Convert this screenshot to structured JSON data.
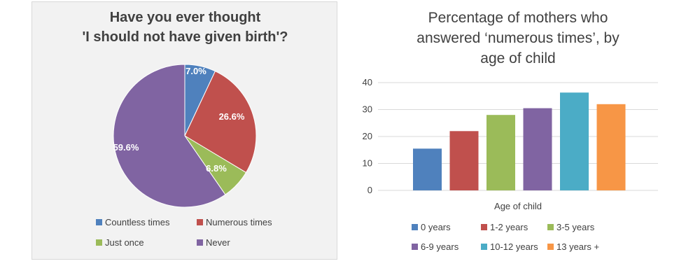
{
  "chart_data": [
    {
      "type": "pie",
      "title_line1": "Have you ever thought",
      "title_line2": "'I should not have given birth'?",
      "legend_position": "bottom",
      "slices": [
        {
          "label": "Countless times",
          "value": 7.0,
          "display": "7.0%",
          "color": "#4f81bd"
        },
        {
          "label": "Numerous times",
          "value": 26.6,
          "display": "26.6%",
          "color": "#c0504d"
        },
        {
          "label": "Just once",
          "value": 6.8,
          "display": "6.8%",
          "color": "#9bbb59"
        },
        {
          "label": "Never",
          "value": 59.6,
          "display": "59.6%",
          "color": "#8064a2"
        }
      ]
    },
    {
      "type": "bar",
      "title_line1": "Percentage of mothers who",
      "title_line2": "answered ‘numerous times’, by",
      "title_line3": "age of child",
      "xlabel": "Age of child",
      "ylim": [
        0,
        40
      ],
      "yticks": [
        0,
        10,
        20,
        30,
        40
      ],
      "grid": true,
      "legend_position": "bottom",
      "series": [
        {
          "name": "0 years",
          "value": 15.5,
          "color": "#4f81bd"
        },
        {
          "name": "1-2 years",
          "value": 22,
          "color": "#c0504d"
        },
        {
          "name": "3-5 years",
          "value": 28,
          "color": "#9bbb59"
        },
        {
          "name": "6-9 years",
          "value": 30.5,
          "color": "#8064a2"
        },
        {
          "name": "10-12 years",
          "value": 36.3,
          "color": "#4bacc6"
        },
        {
          "name": "13 years +",
          "value": 32,
          "color": "#f79646"
        }
      ]
    }
  ]
}
